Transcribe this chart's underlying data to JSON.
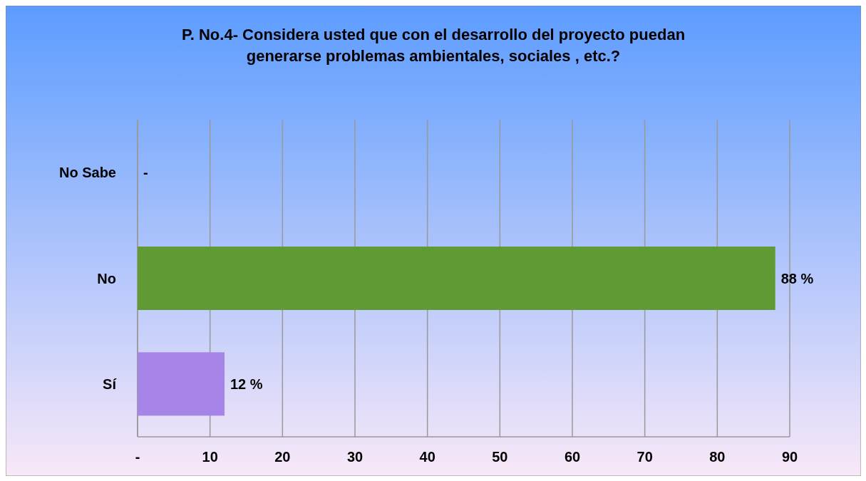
{
  "chart_data": {
    "type": "bar",
    "orientation": "horizontal",
    "title": "P. No.4- Considera usted que con el desarrollo del proyecto puedan generarse problemas ambientales, sociales , etc.?",
    "categories": [
      "No Sabe",
      "No",
      "Sí"
    ],
    "values": [
      0,
      88,
      12
    ],
    "colors": [
      "#1a6f8a",
      "#5f9a34",
      "#a784e8"
    ],
    "value_labels": [
      "-",
      "88 %",
      "12 %"
    ],
    "xlim": [
      0,
      90
    ],
    "xticks": [
      {
        "value": 0,
        "label": "-"
      },
      10,
      20,
      30,
      40,
      50,
      60,
      70,
      80,
      90
    ],
    "grid": "x"
  }
}
